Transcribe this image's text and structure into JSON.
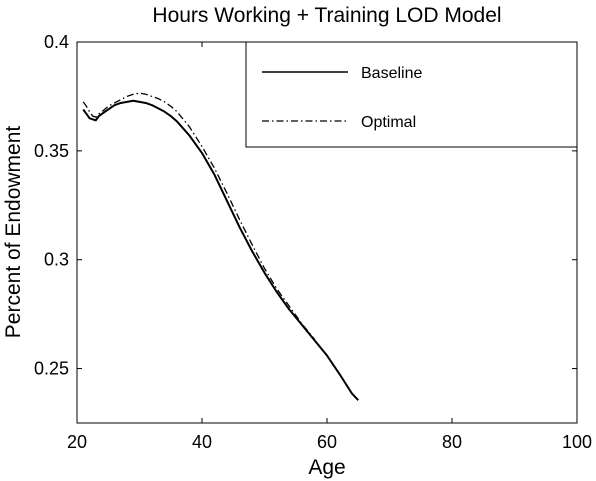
{
  "chart_data": {
    "type": "line",
    "title": "Hours Working + Training LOD Model",
    "xlabel": "Age",
    "ylabel": "Percent of Endowment",
    "xlim": [
      20,
      100
    ],
    "ylim": [
      0.225,
      0.4
    ],
    "xticks": [
      20,
      40,
      60,
      80,
      100
    ],
    "yticks": [
      0.25,
      0.3,
      0.35,
      0.4
    ],
    "xtick_labels": [
      "20",
      "40",
      "60",
      "80",
      "100"
    ],
    "ytick_labels": [
      "0.25",
      "0.3",
      "0.35",
      "0.4"
    ],
    "grid": false,
    "legend_position": "top-right",
    "series": [
      {
        "name": "Baseline",
        "style": "solid",
        "x": [
          21,
          21.5,
          22,
          22.5,
          23,
          23.5,
          24,
          25,
          26,
          27,
          28,
          29,
          30,
          31,
          32,
          33,
          34,
          35,
          36,
          38,
          40,
          42,
          44,
          46,
          48,
          50,
          52,
          54,
          56,
          58,
          60,
          62,
          64,
          65
        ],
        "y": [
          0.369,
          0.367,
          0.365,
          0.3645,
          0.364,
          0.366,
          0.367,
          0.369,
          0.371,
          0.372,
          0.3725,
          0.373,
          0.3725,
          0.372,
          0.371,
          0.3695,
          0.368,
          0.366,
          0.3635,
          0.357,
          0.349,
          0.339,
          0.327,
          0.315,
          0.304,
          0.294,
          0.285,
          0.277,
          0.27,
          0.263,
          0.256,
          0.2475,
          0.2385,
          0.2355
        ]
      },
      {
        "name": "Optimal",
        "style": "dashdot",
        "x": [
          21,
          21.5,
          22,
          22.5,
          23,
          23.5,
          24,
          25,
          26,
          27,
          28,
          29,
          30,
          31,
          32,
          33,
          34,
          35,
          36,
          38,
          40,
          42,
          44,
          46,
          48,
          50,
          52,
          54,
          56,
          58
        ],
        "y": [
          0.3725,
          0.3705,
          0.368,
          0.366,
          0.3655,
          0.367,
          0.368,
          0.3705,
          0.372,
          0.3735,
          0.375,
          0.376,
          0.3765,
          0.376,
          0.375,
          0.374,
          0.3725,
          0.3705,
          0.368,
          0.361,
          0.352,
          0.342,
          0.3305,
          0.3185,
          0.307,
          0.296,
          0.2865,
          0.2785,
          0.2705,
          0.2635
        ]
      }
    ]
  }
}
